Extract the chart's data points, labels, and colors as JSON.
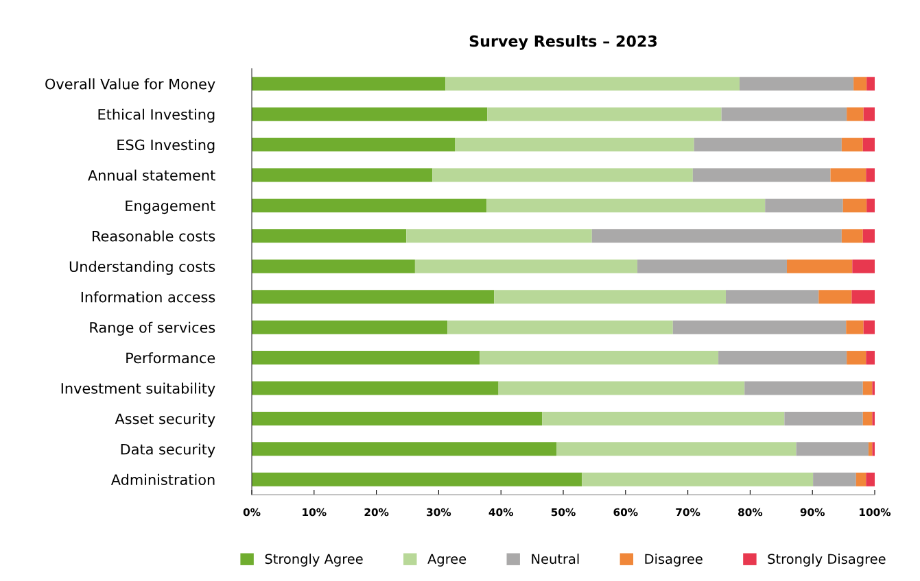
{
  "chart_data": {
    "type": "bar",
    "orientation": "horizontal",
    "stacked": true,
    "title": "Survey Results – 2023",
    "categories": [
      "Overall Value for Money",
      "Ethical Investing",
      "ESG Investing",
      "Annual statement",
      "Engagement",
      "Reasonable costs",
      "Understanding costs",
      "Information access",
      "Range of services",
      "Performance",
      "Investment suitability",
      "Asset security",
      "Data security",
      "Administration"
    ],
    "series": [
      {
        "name": "Strongly Agree",
        "color": "#70ad2f",
        "values": [
          31.1,
          37.8,
          32.6,
          29.0,
          37.7,
          24.8,
          26.2,
          38.9,
          31.4,
          36.6,
          39.6,
          46.6,
          48.9,
          53.0
        ]
      },
      {
        "name": "Agree",
        "color": "#b8d898",
        "values": [
          47.2,
          37.6,
          38.4,
          41.8,
          44.7,
          29.8,
          35.7,
          37.2,
          36.2,
          38.3,
          39.5,
          38.9,
          38.5,
          37.1
        ]
      },
      {
        "name": "Neutral",
        "color": "#aaa9a9",
        "values": [
          18.3,
          20.1,
          23.7,
          22.1,
          12.5,
          40.1,
          24.0,
          14.9,
          27.8,
          20.6,
          19.0,
          12.6,
          11.6,
          6.9
        ]
      },
      {
        "name": "Disagree",
        "color": "#f0873a",
        "values": [
          2.1,
          2.7,
          3.4,
          5.7,
          3.8,
          3.4,
          10.5,
          5.3,
          2.8,
          3.1,
          1.5,
          1.5,
          0.6,
          1.6
        ]
      },
      {
        "name": "Strongly Disagree",
        "color": "#e8384f",
        "values": [
          1.3,
          1.8,
          1.9,
          1.4,
          1.3,
          1.9,
          3.6,
          3.7,
          1.8,
          1.4,
          0.4,
          0.4,
          0.4,
          1.4
        ]
      }
    ],
    "xlim": [
      0,
      100
    ],
    "xticks": [
      {
        "value": 0,
        "label": "0%"
      },
      {
        "value": 10,
        "label": "10%"
      },
      {
        "value": 20,
        "label": "20%"
      },
      {
        "value": 30,
        "label": "30%"
      },
      {
        "value": 40,
        "label": "40%"
      },
      {
        "value": 50,
        "label": "50%"
      },
      {
        "value": 60,
        "label": "60%"
      },
      {
        "value": 70,
        "label": "70%"
      },
      {
        "value": 80,
        "label": "80%"
      },
      {
        "value": 90,
        "label": "90%"
      },
      {
        "value": 100,
        "label": "100%"
      }
    ],
    "grid": false,
    "legend": "bottom"
  }
}
